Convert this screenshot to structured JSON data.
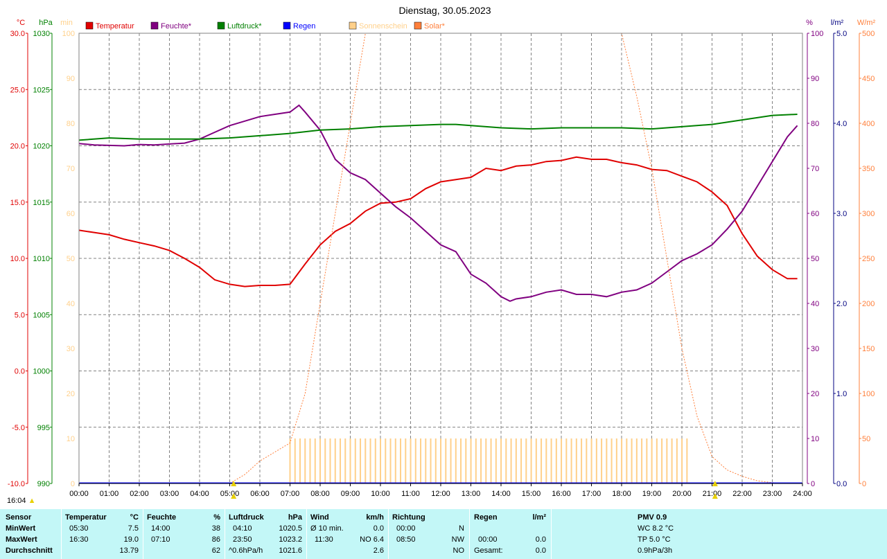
{
  "title": "Dienstag, 30.05.2023",
  "timestamp": "16:04",
  "legend": [
    {
      "name": "Temperatur",
      "color": "#e00000"
    },
    {
      "name": "Feuchte*",
      "color": "#800080"
    },
    {
      "name": "Luftdruck*",
      "color": "#008000"
    },
    {
      "name": "Regen",
      "color": "#0000ff"
    },
    {
      "name": "Sonnenschein",
      "color": "#ffd08a"
    },
    {
      "name": "Solar*",
      "color": "#ff7f3a"
    }
  ],
  "axes": {
    "temp": {
      "unit": "°C",
      "color": "#e00000",
      "ticks": [
        "30.0",
        "25.0",
        "20.0",
        "15.0",
        "10.0",
        "5.0",
        "0.0",
        "-5.0",
        "-10.0"
      ]
    },
    "pressure": {
      "unit": "hPa",
      "color": "#008000",
      "ticks": [
        "1030",
        "1025",
        "1020",
        "1015",
        "1010",
        "1005",
        "1000",
        "995",
        "990"
      ]
    },
    "sunshine": {
      "unit": "min",
      "color": "#ffd08a",
      "ticks": [
        "100",
        "90",
        "80",
        "70",
        "60",
        "50",
        "40",
        "30",
        "20",
        "10",
        "0"
      ]
    },
    "humidity": {
      "unit": "%",
      "color": "#800080",
      "ticks": [
        "100",
        "90",
        "80",
        "70",
        "60",
        "50",
        "40",
        "30",
        "20",
        "10",
        "0"
      ]
    },
    "rain": {
      "unit": "l/m²",
      "color": "#000080",
      "ticks": [
        "5.0",
        "4.0",
        "3.0",
        "2.0",
        "1.0",
        "0.0"
      ]
    },
    "solar": {
      "unit": "W/m²",
      "color": "#ff7f3a",
      "ticks": [
        "500",
        "450",
        "400",
        "350",
        "300",
        "250",
        "200",
        "150",
        "100",
        "50",
        "0"
      ]
    }
  },
  "chart_data": {
    "type": "line",
    "title": "Dienstag, 30.05.2023",
    "x_ticks": [
      "00:00",
      "01:00",
      "02:00",
      "03:00",
      "04:00",
      "05:00",
      "06:00",
      "07:00",
      "08:00",
      "09:00",
      "10:00",
      "11:00",
      "12:00",
      "13:00",
      "14:00",
      "15:00",
      "16:00",
      "17:00",
      "18:00",
      "19:00",
      "20:00",
      "21:00",
      "22:00",
      "23:00",
      "24:00"
    ],
    "xlim": [
      0,
      24
    ],
    "grid": true,
    "legend_position": "top",
    "series": [
      {
        "name": "Temperatur",
        "axis": "temp",
        "color": "#e00000",
        "x": [
          0,
          0.5,
          1,
          1.5,
          2,
          2.5,
          3,
          3.5,
          4,
          4.5,
          5,
          5.5,
          6,
          6.5,
          7,
          7.5,
          8,
          8.5,
          9,
          9.5,
          10,
          10.5,
          11,
          11.5,
          12,
          12.5,
          13,
          13.5,
          14,
          14.5,
          15,
          15.5,
          16,
          16.5,
          17,
          17.5,
          18,
          18.5,
          19,
          19.5,
          20,
          20.5,
          21,
          21.5,
          22,
          22.5,
          23,
          23.5,
          23.83
        ],
        "y": [
          12.5,
          12.3,
          12.1,
          11.7,
          11.4,
          11.1,
          10.7,
          10.0,
          9.2,
          8.1,
          7.7,
          7.5,
          7.6,
          7.6,
          7.7,
          9.5,
          11.2,
          12.4,
          13.1,
          14.2,
          14.9,
          15.0,
          15.3,
          16.2,
          16.8,
          17.0,
          17.2,
          18.0,
          17.8,
          18.2,
          18.3,
          18.6,
          18.7,
          19.0,
          18.8,
          18.8,
          18.5,
          18.3,
          17.9,
          17.8,
          17.3,
          16.8,
          15.9,
          14.7,
          12.2,
          10.2,
          9.0,
          8.2,
          8.2
        ]
      },
      {
        "name": "Feuchte*",
        "axis": "humidity",
        "color": "#800080",
        "x": [
          0,
          0.5,
          1,
          1.5,
          2,
          2.5,
          3,
          3.5,
          4,
          4.5,
          5,
          5.5,
          6,
          6.5,
          7,
          7.3,
          7.5,
          8,
          8.5,
          9,
          9.5,
          10,
          10.5,
          11,
          11.5,
          12,
          12.5,
          13,
          13.5,
          14,
          14.3,
          14.5,
          15,
          15.5,
          16,
          16.5,
          17,
          17.5,
          18,
          18.5,
          19,
          19.5,
          20,
          20.5,
          21,
          21.5,
          22,
          22.5,
          23,
          23.5,
          23.83
        ],
        "y": [
          75.5,
          75.2,
          75.1,
          75.0,
          75.3,
          75.2,
          75.4,
          75.6,
          76.5,
          78.0,
          79.5,
          80.5,
          81.5,
          82.0,
          82.5,
          84.0,
          82.5,
          78.5,
          72.0,
          69.0,
          67.5,
          64.5,
          61.5,
          59.0,
          56.0,
          53.0,
          51.5,
          46.5,
          44.5,
          41.5,
          40.5,
          41.0,
          41.5,
          42.5,
          43.0,
          42.0,
          42.0,
          41.5,
          42.5,
          43.0,
          44.5,
          47.0,
          49.5,
          51.0,
          53.0,
          56.5,
          60.5,
          66.0,
          71.5,
          77.0,
          79.5
        ]
      },
      {
        "name": "Luftdruck*",
        "axis": "pressure",
        "color": "#008000",
        "x": [
          0,
          1,
          2,
          3,
          4,
          5,
          6,
          7,
          8,
          9,
          10,
          11,
          12,
          12.5,
          13,
          14,
          15,
          16,
          17,
          18,
          19,
          20,
          21,
          22,
          23,
          23.83
        ],
        "y": [
          1020.5,
          1020.7,
          1020.6,
          1020.6,
          1020.6,
          1020.7,
          1020.9,
          1021.1,
          1021.4,
          1021.5,
          1021.7,
          1021.8,
          1021.9,
          1021.9,
          1021.8,
          1021.6,
          1021.5,
          1021.6,
          1021.6,
          1021.6,
          1021.5,
          1021.7,
          1021.9,
          1022.3,
          1022.7,
          1022.8
        ]
      },
      {
        "name": "Solar*",
        "axis": "solar",
        "color": "#ff7f3a",
        "dashed": true,
        "x": [
          5,
          5.5,
          6,
          6.5,
          7,
          7.5,
          8,
          8.5,
          9,
          9.3,
          9.5,
          9.8,
          18,
          18.5,
          19,
          19.5,
          20,
          20.5,
          21,
          21.5,
          22,
          22.5,
          23,
          23.5,
          23.83
        ],
        "y": [
          0,
          10,
          25,
          35,
          45,
          100,
          200,
          300,
          400,
          460,
          500,
          500,
          500,
          430,
          350,
          250,
          150,
          75,
          30,
          15,
          8,
          3,
          1,
          0,
          0
        ]
      },
      {
        "name": "Sonnenschein",
        "axis": "sunshine",
        "color": "#ffd08a",
        "type": "bar",
        "bar_start": 7.0,
        "bar_end": 20.3,
        "bar_step": 0.1667,
        "bar_value": 10
      },
      {
        "name": "Regen",
        "axis": "rain",
        "color": "#0000ff",
        "values": [
          0
        ]
      }
    ]
  },
  "summary": {
    "sensor": {
      "header": "Sensor",
      "rows": [
        "MinWert",
        "MaxWert",
        "Durchschnitt"
      ]
    },
    "temperature": {
      "header": "Temperatur",
      "unit": "°C",
      "rows": [
        {
          "time": "05:30",
          "value": "7.5"
        },
        {
          "time": "16:30",
          "value": "19.0"
        },
        {
          "time": "",
          "value": "13.79"
        }
      ]
    },
    "humidity": {
      "header": "Feuchte",
      "unit": "%",
      "rows": [
        {
          "time": "14:00",
          "value": "38"
        },
        {
          "time": "07:10",
          "value": "86"
        },
        {
          "time": "",
          "value": "62"
        }
      ]
    },
    "pressure": {
      "header": "Luftdruck",
      "unit": "hPa",
      "rows": [
        {
          "time": "04:10",
          "value": "1020.5"
        },
        {
          "time": "23:50",
          "value": "1023.2"
        },
        {
          "time": "^0.6hPa/h",
          "value": "1021.6"
        }
      ]
    },
    "wind": {
      "header": "Wind",
      "unit": "km/h",
      "rows": [
        {
          "time": "Ø 10 min.",
          "value": "0.0"
        },
        {
          "time": "11:30",
          "value": "NO 6.4"
        },
        {
          "time": "",
          "value": "2.6"
        }
      ]
    },
    "direction": {
      "header": "Richtung",
      "rows": [
        {
          "time": "00:00",
          "value": "N"
        },
        {
          "time": "08:50",
          "value": "NW"
        },
        {
          "time": "",
          "value": "NO"
        }
      ]
    },
    "rain": {
      "header": "Regen",
      "unit": "l/m²",
      "rows": [
        {
          "time": "",
          "value": ""
        },
        {
          "time": "00:00",
          "value": "0.0"
        },
        {
          "time": "Gesamt:",
          "value": "0.0"
        }
      ]
    },
    "pmv": {
      "header": "PMV 0.9",
      "rows": [
        "WC 8.2 °C",
        "TP 5.0 °C",
        "0.9hPa/3h"
      ]
    }
  }
}
